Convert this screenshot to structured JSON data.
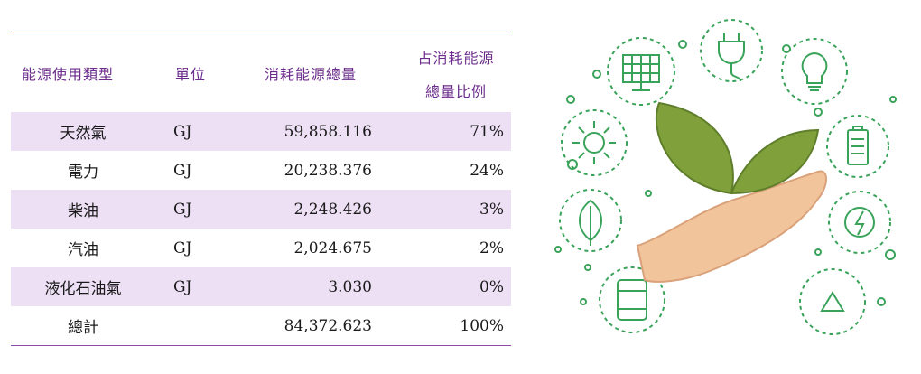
{
  "table": {
    "headers": [
      "能源使用類型",
      "單位",
      "消耗能源總量",
      "占消耗能源",
      "總量比例"
    ],
    "rows": [
      {
        "type": "天然氣",
        "unit": "GJ",
        "amount": "59,858.116",
        "share": "71%"
      },
      {
        "type": "電力",
        "unit": "GJ",
        "amount": "20,238.376",
        "share": "24%"
      },
      {
        "type": "柴油",
        "unit": "GJ",
        "amount": "2,248.426",
        "share": "3%"
      },
      {
        "type": "汽油",
        "unit": "GJ",
        "amount": "2,024.675",
        "share": "2%"
      },
      {
        "type": "液化石油氣",
        "unit": "GJ",
        "amount": "3.030",
        "share": "0%"
      },
      {
        "type": "總計",
        "unit": "",
        "amount": "84,372.623",
        "share": "100%"
      }
    ]
  },
  "illustration": {
    "icons": [
      "solar-panel-icon",
      "plug-icon",
      "lightbulb-icon",
      "battery-icon",
      "lightning-icon",
      "recycle-icon",
      "oil-barrel-icon",
      "leaf-icon",
      "sun-icon"
    ],
    "colors": {
      "icon_green": "#3aa35a",
      "leaf_green": "#7fa03a",
      "hand": "#f2c49b"
    }
  },
  "colors": {
    "header_text": "#6b2c8b",
    "row_shade": "#ede0f5",
    "rule": "#8b4aa8"
  }
}
